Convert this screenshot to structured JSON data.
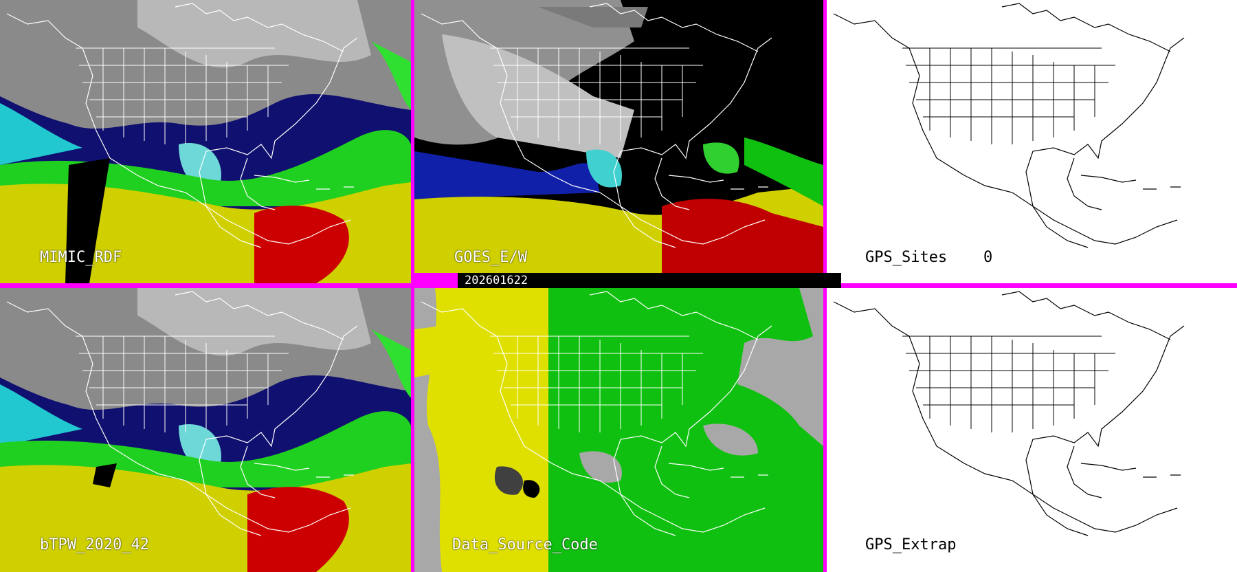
{
  "panels": {
    "p1": {
      "label": "MIMIC_RDF"
    },
    "p2": {
      "label": "GOES_E/W"
    },
    "p3": {
      "label": "GPS_Sites",
      "count": "0"
    },
    "p4": {
      "label": "bTPW_2020_42"
    },
    "p5": {
      "label": "Data_Source_Code"
    },
    "p6": {
      "label": "GPS_Extrap"
    }
  },
  "timestamp": "202601622",
  "colors": {
    "divider": "#ff00ff",
    "tpw_dry": "#9a9a9a",
    "tpw_blue": "#0a1ea8",
    "tpw_cyan": "#22d4d4",
    "tpw_green": "#18d018",
    "tpw_yellow": "#d8d800",
    "tpw_red": "#d00000",
    "source_yellow": "#e0e000",
    "source_green": "#10c010",
    "source_gray": "#a8a8a8"
  }
}
